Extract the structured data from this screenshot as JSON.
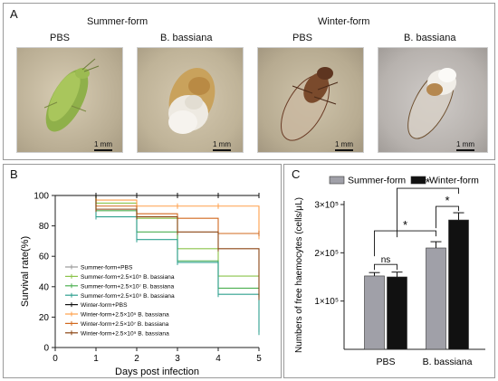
{
  "panel_a": {
    "label": "A",
    "group_summer": "Summer-form",
    "group_winter": "Winter-form",
    "photos": [
      {
        "label": "PBS",
        "scale": "1 mm"
      },
      {
        "label": "B. bassiana",
        "scale": "1 mm"
      },
      {
        "label": "PBS",
        "scale": "1 mm"
      },
      {
        "label": "B. bassiana",
        "scale": "1 mm"
      }
    ]
  },
  "panel_b": {
    "label": "B"
  },
  "panel_c": {
    "label": "C"
  },
  "chart_data": [
    {
      "type": "line",
      "chart": "survival",
      "xlabel": "Days post infection",
      "ylabel": "Survival rate(%)",
      "x": [
        0,
        1,
        2,
        3,
        4,
        5
      ],
      "xlim": [
        0,
        5
      ],
      "ylim": [
        0,
        100
      ],
      "xticks": [
        "0",
        "1",
        "2",
        "3",
        "4",
        "5"
      ],
      "yticks": [
        "0",
        "20",
        "40",
        "60",
        "80",
        "100"
      ],
      "legend_position": "left-middle",
      "series": [
        {
          "name": "Summer-form+PBS",
          "color": "#9a9a9a",
          "values": [
            100,
            100,
            100,
            100,
            100,
            100
          ]
        },
        {
          "name": "Summer-form+2.5×10⁵ B. bassiana",
          "color": "#8bc34a",
          "values": [
            100,
            95,
            85,
            65,
            47,
            47
          ]
        },
        {
          "name": "Summer-form+2.5×10⁷ B. bassiana",
          "color": "#4caf50",
          "values": [
            100,
            90,
            76,
            57,
            39,
            39
          ]
        },
        {
          "name": "Summer-form+2.5×10⁹ B. bassiana",
          "color": "#2ea08f",
          "values": [
            100,
            86,
            71,
            56,
            35,
            10
          ]
        },
        {
          "name": "Winter-form+PBS",
          "color": "#111111",
          "values": [
            100,
            100,
            100,
            100,
            100,
            100
          ]
        },
        {
          "name": "Winter-form+2.5×10⁵ B. bassiana",
          "color": "#ff9f4a",
          "values": [
            100,
            97,
            93,
            93,
            93,
            73
          ]
        },
        {
          "name": "Winter-form+2.5×10⁷ B. bassiana",
          "color": "#d2691e",
          "values": [
            100,
            93,
            88,
            85,
            75,
            75
          ]
        },
        {
          "name": "Winter-form+2.5×10⁹ B. bassiana",
          "color": "#8b4513",
          "values": [
            100,
            91,
            86,
            76,
            65,
            33
          ]
        }
      ]
    },
    {
      "type": "bar",
      "chart": "haemocytes",
      "ylabel": "Numbers of free haemocytes (cells/μL)",
      "categories": [
        "PBS",
        "B. bassiana"
      ],
      "ylim": [
        0,
        300000
      ],
      "yticks": [
        "1×10⁵",
        "2×10⁵",
        "3×10⁵"
      ],
      "legend_position": "top",
      "series": [
        {
          "name": "Summer-form",
          "color": "#a0a0a8",
          "values": [
            152000,
            210000
          ],
          "errors": [
            7000,
            13000
          ]
        },
        {
          "name": "Winter-form",
          "color": "#111111",
          "values": [
            150000,
            268000
          ],
          "errors": [
            10000,
            15000
          ]
        }
      ],
      "annotations": [
        "ns",
        "*",
        "*",
        "*"
      ]
    }
  ]
}
